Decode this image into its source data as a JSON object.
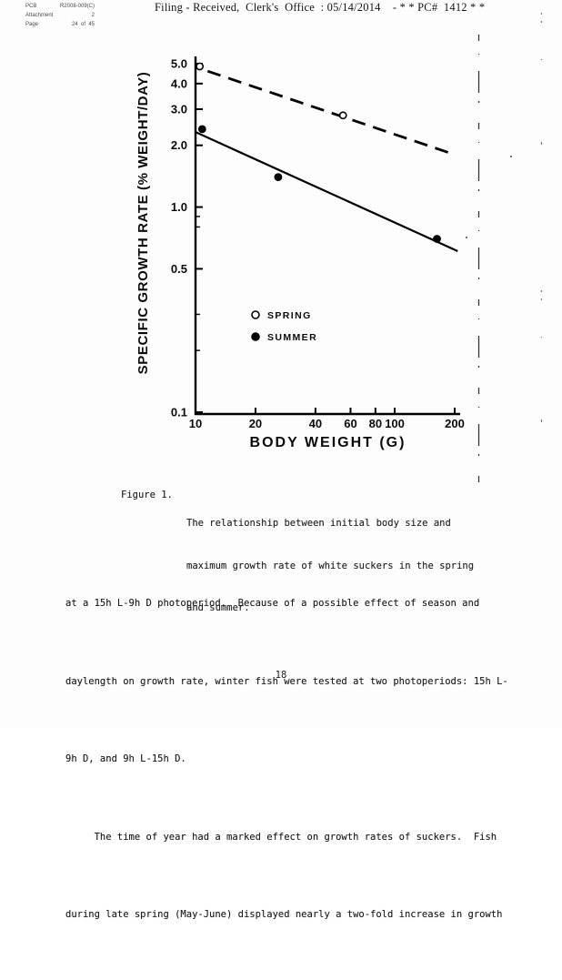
{
  "stamp": {
    "rows": [
      {
        "left": "PCB",
        "right": "R2008-009(C)"
      },
      {
        "left": "Attachment",
        "right": "2"
      },
      {
        "left": "Page",
        "right": "24  of  45"
      }
    ]
  },
  "header": {
    "title": "Filing - Received,  Clerk's  Office  : 05/14/2014    - * * PC#  1412 * *"
  },
  "chart_data": {
    "type": "scatter",
    "title": "",
    "xlabel": "BODY WEIGHT (G)",
    "ylabel": "SPECIFIC GROWTH RATE (% WEIGHT/DAY)",
    "x_scale": "log",
    "y_scale": "log",
    "xlim": [
      10,
      200
    ],
    "ylim": [
      0.1,
      5.0
    ],
    "x_ticks": [
      10,
      20,
      40,
      60,
      80,
      100,
      200
    ],
    "y_ticks": [
      5.0,
      4.0,
      3.0,
      2.0,
      1.0,
      0.5,
      0.1
    ],
    "y_minor_ticks": [
      0.9,
      0.8,
      0.3,
      0.2
    ],
    "grid": false,
    "legend_position": "inside-lower-middle",
    "series": [
      {
        "name": "SPRING",
        "marker": "open-circle",
        "line": "dashed",
        "points": [
          [
            10.5,
            4.85
          ],
          [
            55,
            2.8
          ]
        ],
        "trend": [
          [
            11.5,
            4.6
          ],
          [
            194,
            1.82
          ]
        ]
      },
      {
        "name": "SUMMER",
        "marker": "filled-circle",
        "line": "solid",
        "points": [
          [
            10.8,
            2.4
          ],
          [
            26,
            1.4
          ],
          [
            163,
            0.7
          ]
        ],
        "trend": [
          [
            10,
            2.32
          ],
          [
            207,
            0.61
          ]
        ]
      }
    ]
  },
  "caption": {
    "label": "Figure 1.",
    "lines": [
      "The relationship between initial body size and",
      "maximum growth rate of white suckers in the spring",
      "and summer."
    ]
  },
  "body_text": {
    "lines": [
      "at a 15h L-9h D photoperiod.  Because of a possible effect of season and",
      "daylength on growth rate, winter fish were tested at two photoperiods: 15h L-",
      "9h D, and 9h L-15h D.",
      "     The time of year had a marked effect on growth rates of suckers.  Fish",
      "during late spring (May-June) displayed nearly a two-fold increase in growth"
    ]
  },
  "page_number": "18",
  "colors": {
    "ink": "#000000",
    "stamp_ink": "#4a4a52",
    "paper": "#fdfdfd"
  }
}
